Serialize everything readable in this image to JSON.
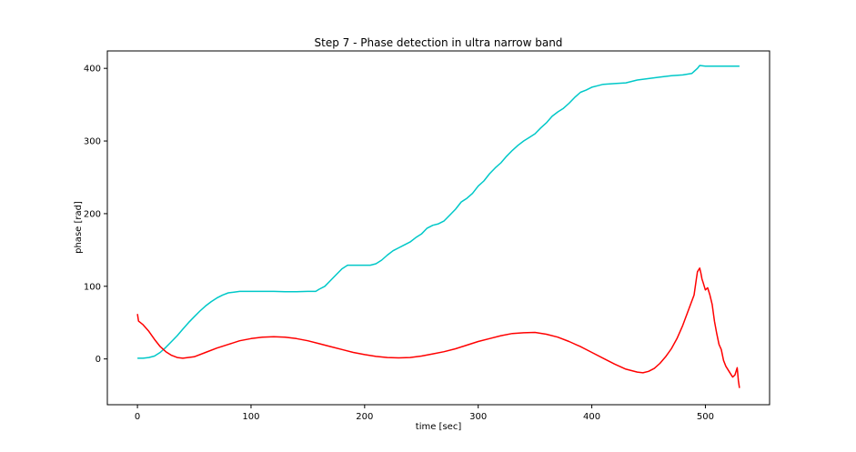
{
  "chart_data": {
    "type": "line",
    "title": "Step 7 - Phase detection in ultra narrow band",
    "xlabel": "time [sec]",
    "ylabel": "phase [rad]",
    "xlim": [
      -26.5,
      556.5
    ],
    "ylim": [
      -63,
      424
    ],
    "xticks": [
      0,
      100,
      200,
      300,
      400,
      500
    ],
    "yticks": [
      0,
      100,
      200,
      300,
      400
    ],
    "xtick_labels": [
      "0",
      "100",
      "200",
      "300",
      "400",
      "500"
    ],
    "ytick_labels": [
      "0",
      "100",
      "200",
      "300",
      "400"
    ],
    "grid": false,
    "legend": "none",
    "series": [
      {
        "color": "#00c8c8",
        "points": [
          [
            0,
            1
          ],
          [
            5,
            1
          ],
          [
            10,
            2
          ],
          [
            15,
            4
          ],
          [
            20,
            9
          ],
          [
            25,
            16
          ],
          [
            30,
            24
          ],
          [
            35,
            32
          ],
          [
            40,
            41
          ],
          [
            45,
            50
          ],
          [
            50,
            58
          ],
          [
            55,
            66
          ],
          [
            60,
            73
          ],
          [
            65,
            79
          ],
          [
            70,
            84
          ],
          [
            75,
            88
          ],
          [
            80,
            91
          ],
          [
            85,
            92
          ],
          [
            90,
            93
          ],
          [
            100,
            93
          ],
          [
            110,
            93
          ],
          [
            120,
            93
          ],
          [
            130,
            92.5
          ],
          [
            140,
            92.5
          ],
          [
            150,
            93
          ],
          [
            157,
            93
          ],
          [
            160,
            96
          ],
          [
            165,
            100
          ],
          [
            170,
            108
          ],
          [
            175,
            116
          ],
          [
            180,
            124
          ],
          [
            185,
            129
          ],
          [
            190,
            129
          ],
          [
            200,
            129
          ],
          [
            205,
            129
          ],
          [
            210,
            131
          ],
          [
            215,
            136
          ],
          [
            220,
            143
          ],
          [
            225,
            149
          ],
          [
            230,
            153
          ],
          [
            235,
            157
          ],
          [
            240,
            161
          ],
          [
            245,
            167
          ],
          [
            250,
            172
          ],
          [
            255,
            180
          ],
          [
            260,
            184
          ],
          [
            265,
            186
          ],
          [
            270,
            190
          ],
          [
            275,
            198
          ],
          [
            280,
            206
          ],
          [
            285,
            216
          ],
          [
            290,
            221
          ],
          [
            295,
            228
          ],
          [
            300,
            238
          ],
          [
            305,
            245
          ],
          [
            310,
            255
          ],
          [
            315,
            263
          ],
          [
            320,
            270
          ],
          [
            325,
            279
          ],
          [
            330,
            287
          ],
          [
            335,
            294
          ],
          [
            340,
            300
          ],
          [
            345,
            305
          ],
          [
            350,
            310
          ],
          [
            355,
            318
          ],
          [
            360,
            325
          ],
          [
            365,
            334
          ],
          [
            370,
            340
          ],
          [
            375,
            345
          ],
          [
            380,
            352
          ],
          [
            385,
            360
          ],
          [
            390,
            367
          ],
          [
            395,
            370
          ],
          [
            400,
            374
          ],
          [
            405,
            376
          ],
          [
            410,
            378
          ],
          [
            420,
            379
          ],
          [
            430,
            380
          ],
          [
            440,
            384
          ],
          [
            450,
            386
          ],
          [
            460,
            388
          ],
          [
            470,
            390
          ],
          [
            480,
            391
          ],
          [
            488,
            393
          ],
          [
            493,
            400
          ],
          [
            495,
            404
          ],
          [
            500,
            403
          ],
          [
            510,
            403
          ],
          [
            520,
            403
          ],
          [
            530,
            403
          ]
        ]
      },
      {
        "color": "#ff0000",
        "points": [
          [
            0,
            62
          ],
          [
            1,
            52
          ],
          [
            5,
            47
          ],
          [
            10,
            38
          ],
          [
            15,
            27
          ],
          [
            20,
            17
          ],
          [
            25,
            10
          ],
          [
            30,
            5
          ],
          [
            35,
            2
          ],
          [
            40,
            1
          ],
          [
            50,
            3
          ],
          [
            60,
            9
          ],
          [
            70,
            15
          ],
          [
            80,
            20
          ],
          [
            90,
            25
          ],
          [
            100,
            28
          ],
          [
            110,
            30
          ],
          [
            120,
            30.5
          ],
          [
            130,
            30
          ],
          [
            140,
            28
          ],
          [
            150,
            25
          ],
          [
            160,
            21
          ],
          [
            170,
            17
          ],
          [
            180,
            13
          ],
          [
            190,
            9
          ],
          [
            200,
            6
          ],
          [
            210,
            3.5
          ],
          [
            220,
            2
          ],
          [
            230,
            1.5
          ],
          [
            240,
            2
          ],
          [
            250,
            4
          ],
          [
            260,
            7
          ],
          [
            270,
            10
          ],
          [
            280,
            14
          ],
          [
            290,
            19
          ],
          [
            300,
            24
          ],
          [
            310,
            28
          ],
          [
            320,
            32
          ],
          [
            330,
            35
          ],
          [
            340,
            36
          ],
          [
            350,
            36.5
          ],
          [
            360,
            34
          ],
          [
            370,
            30
          ],
          [
            380,
            24
          ],
          [
            390,
            17
          ],
          [
            400,
            9
          ],
          [
            410,
            1
          ],
          [
            420,
            -7
          ],
          [
            430,
            -14
          ],
          [
            440,
            -18
          ],
          [
            445,
            -19
          ],
          [
            450,
            -17
          ],
          [
            455,
            -13
          ],
          [
            460,
            -6
          ],
          [
            465,
            3
          ],
          [
            470,
            14
          ],
          [
            475,
            28
          ],
          [
            480,
            46
          ],
          [
            485,
            67
          ],
          [
            490,
            88
          ],
          [
            492,
            110
          ],
          [
            493,
            120
          ],
          [
            495,
            125
          ],
          [
            496,
            118
          ],
          [
            497,
            110
          ],
          [
            498,
            105
          ],
          [
            500,
            95
          ],
          [
            502,
            98
          ],
          [
            504,
            88
          ],
          [
            506,
            75
          ],
          [
            508,
            52
          ],
          [
            510,
            35
          ],
          [
            512,
            20
          ],
          [
            514,
            13
          ],
          [
            516,
            -2
          ],
          [
            518,
            -10
          ],
          [
            520,
            -15
          ],
          [
            522,
            -20
          ],
          [
            524,
            -25
          ],
          [
            526,
            -22
          ],
          [
            528,
            -12
          ],
          [
            529,
            -30
          ],
          [
            530,
            -40
          ]
        ]
      }
    ]
  }
}
